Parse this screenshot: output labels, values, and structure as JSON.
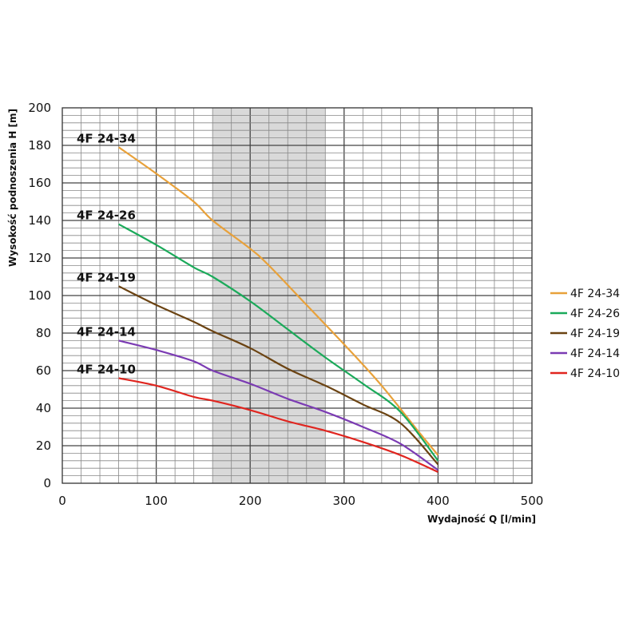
{
  "chart_data": {
    "type": "line",
    "xlabel": "Wydajność Q [l/min]",
    "ylabel": "Wysokość podnoszenia H [m]",
    "xlim": [
      0,
      500
    ],
    "ylim": [
      0,
      200
    ],
    "x_ticks": [
      0,
      100,
      200,
      300,
      400,
      500
    ],
    "y_ticks": [
      0,
      20,
      40,
      60,
      80,
      100,
      120,
      140,
      160,
      180,
      200
    ],
    "grid": true,
    "shaded_range": [
      160,
      280
    ],
    "legend_position": "right",
    "series": [
      {
        "name": "4F 24-34",
        "color": "#E8A13A",
        "x": [
          60,
          100,
          140,
          160,
          200,
          220,
          260,
          300,
          340,
          380,
          400
        ],
        "y": [
          179,
          165,
          150,
          140,
          125,
          116,
          95,
          74,
          52,
          27,
          15
        ]
      },
      {
        "name": "4F 24-26",
        "color": "#1BAA5A",
        "x": [
          60,
          100,
          140,
          160,
          200,
          240,
          280,
          320,
          360,
          400
        ],
        "y": [
          138,
          127,
          115,
          110,
          97,
          82,
          67,
          53,
          38,
          12
        ]
      },
      {
        "name": "4F 24-19",
        "color": "#6B4312",
        "x": [
          60,
          100,
          140,
          160,
          200,
          240,
          280,
          320,
          360,
          400
        ],
        "y": [
          105,
          95,
          86,
          81,
          72,
          61,
          52,
          42,
          32,
          10
        ]
      },
      {
        "name": "4F 24-14",
        "color": "#7B3BB3",
        "x": [
          60,
          100,
          140,
          160,
          200,
          240,
          280,
          320,
          360,
          400
        ],
        "y": [
          76,
          71,
          65,
          60,
          53,
          45,
          38,
          30,
          21,
          7
        ]
      },
      {
        "name": "4F 24-10",
        "color": "#E0251F",
        "x": [
          60,
          100,
          140,
          160,
          200,
          240,
          280,
          320,
          360,
          400
        ],
        "y": [
          56,
          52,
          46,
          44,
          39,
          33,
          28,
          22,
          15,
          6
        ]
      }
    ]
  }
}
